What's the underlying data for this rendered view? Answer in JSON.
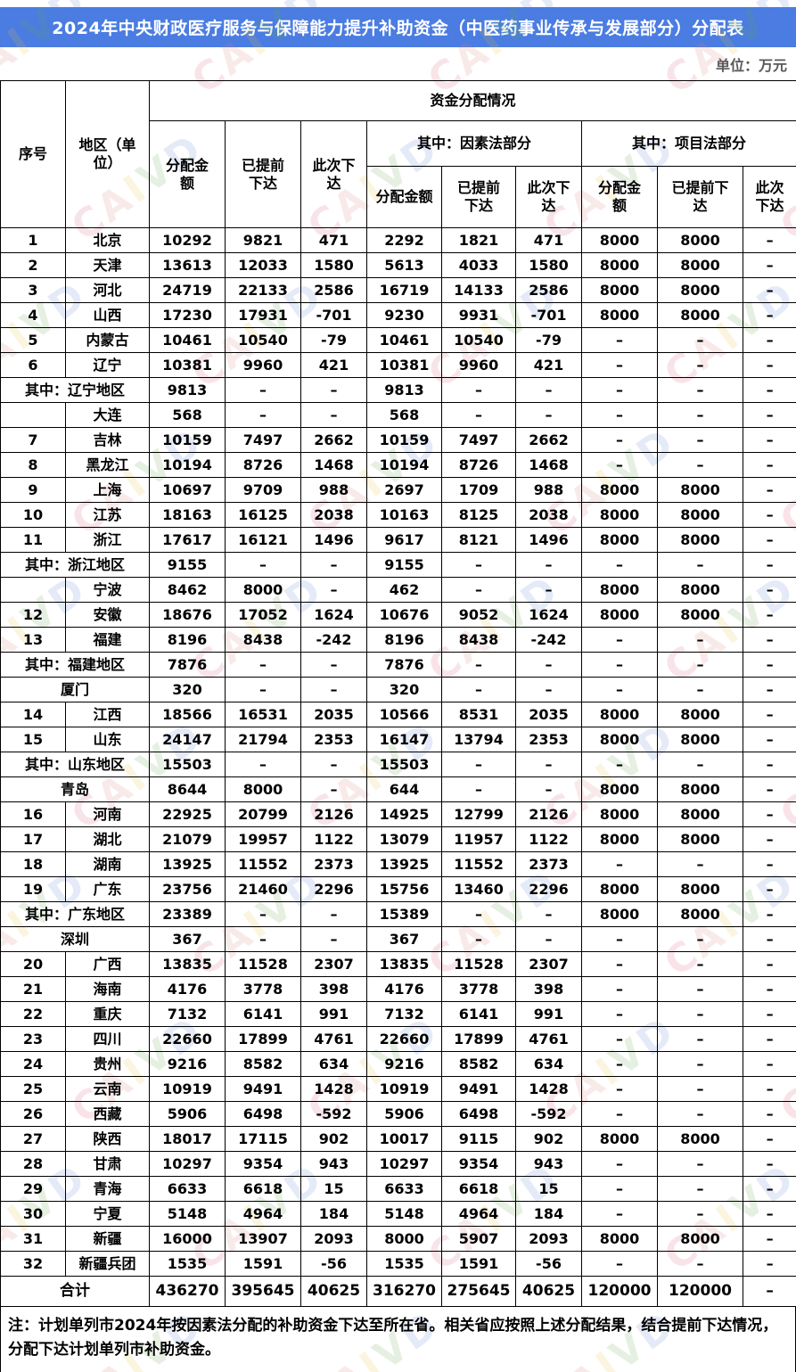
{
  "title": "2024年中央财政医疗服务与保障能力提升补助资金（中医药事业传承与发展部分）分配表",
  "unit_label": "单位：万元",
  "watermark_text": "CAIVD",
  "colors": {
    "title_bg": "#4a7ce2",
    "title_text": "#ffffff",
    "unit_text": "#595959",
    "grid_line": "#000000"
  },
  "header": {
    "col_seq": "序号",
    "col_region": "地区（单位）",
    "group_main": "资金分配情况",
    "col_alloc": "分配金额",
    "col_pre": "已提前下达",
    "col_now": "此次下达",
    "group_factor": "其中：因素法部分",
    "group_project": "其中：项目法部分",
    "sub": [
      "分配金额",
      "已提前下达",
      "此次下达",
      "分配金额",
      "已提前下达",
      "此次下达"
    ]
  },
  "table": {
    "rows": [
      {
        "type": "normal",
        "seq": "1",
        "region": "北京",
        "values": [
          "10292",
          "9821",
          "471",
          "2292",
          "1821",
          "471",
          "8000",
          "8000",
          "–"
        ]
      },
      {
        "type": "normal",
        "seq": "2",
        "region": "天津",
        "values": [
          "13613",
          "12033",
          "1580",
          "5613",
          "4033",
          "1580",
          "8000",
          "8000",
          "–"
        ]
      },
      {
        "type": "normal",
        "seq": "3",
        "region": "河北",
        "values": [
          "24719",
          "22133",
          "2586",
          "16719",
          "14133",
          "2586",
          "8000",
          "8000",
          "–"
        ]
      },
      {
        "type": "normal",
        "seq": "4",
        "region": "山西",
        "values": [
          "17230",
          "17931",
          "-701",
          "9230",
          "9931",
          "-701",
          "8000",
          "8000",
          "–"
        ]
      },
      {
        "type": "normal",
        "seq": "5",
        "region": "内蒙古",
        "values": [
          "10461",
          "10540",
          "-79",
          "10461",
          "10540",
          "-79",
          "–",
          "–",
          "–"
        ]
      },
      {
        "type": "normal",
        "seq": "6",
        "region": "辽宁",
        "values": [
          "10381",
          "9960",
          "421",
          "10381",
          "9960",
          "421",
          "–",
          "–",
          "–"
        ]
      },
      {
        "type": "subtotal",
        "seq": "",
        "region": "其中：辽宁地区",
        "values": [
          "9813",
          "–",
          "–",
          "9813",
          "–",
          "–",
          "–",
          "–",
          "–"
        ]
      },
      {
        "type": "city-split",
        "seq": "",
        "region": "大连",
        "values": [
          "568",
          "–",
          "–",
          "568",
          "–",
          "–",
          "–",
          "–",
          "–"
        ]
      },
      {
        "type": "normal",
        "seq": "7",
        "region": "吉林",
        "values": [
          "10159",
          "7497",
          "2662",
          "10159",
          "7497",
          "2662",
          "–",
          "–",
          "–"
        ]
      },
      {
        "type": "normal",
        "seq": "8",
        "region": "黑龙江",
        "values": [
          "10194",
          "8726",
          "1468",
          "10194",
          "8726",
          "1468",
          "–",
          "–",
          "–"
        ]
      },
      {
        "type": "normal",
        "seq": "9",
        "region": "上海",
        "values": [
          "10697",
          "9709",
          "988",
          "2697",
          "1709",
          "988",
          "8000",
          "8000",
          "–"
        ]
      },
      {
        "type": "normal",
        "seq": "10",
        "region": "江苏",
        "values": [
          "18163",
          "16125",
          "2038",
          "10163",
          "8125",
          "2038",
          "8000",
          "8000",
          "–"
        ]
      },
      {
        "type": "normal",
        "seq": "11",
        "region": "浙江",
        "values": [
          "17617",
          "16121",
          "1496",
          "9617",
          "8121",
          "1496",
          "8000",
          "8000",
          "–"
        ]
      },
      {
        "type": "subtotal",
        "seq": "",
        "region": "其中：浙江地区",
        "values": [
          "9155",
          "–",
          "–",
          "9155",
          "–",
          "–",
          "–",
          "–",
          "–"
        ]
      },
      {
        "type": "city-split",
        "seq": "",
        "region": "宁波",
        "values": [
          "8462",
          "8000",
          "–",
          "462",
          "–",
          "–",
          "8000",
          "8000",
          "–"
        ]
      },
      {
        "type": "normal",
        "seq": "12",
        "region": "安徽",
        "values": [
          "18676",
          "17052",
          "1624",
          "10676",
          "9052",
          "1624",
          "8000",
          "8000",
          "–"
        ]
      },
      {
        "type": "normal",
        "seq": "13",
        "region": "福建",
        "values": [
          "8196",
          "8438",
          "-242",
          "8196",
          "8438",
          "-242",
          "–",
          "–",
          "–"
        ]
      },
      {
        "type": "subtotal",
        "seq": "",
        "region": "其中：福建地区",
        "values": [
          "7876",
          "–",
          "–",
          "7876",
          "–",
          "–",
          "–",
          "–",
          "–"
        ]
      },
      {
        "type": "city-merged",
        "seq": "",
        "region": "厦门",
        "values": [
          "320",
          "–",
          "–",
          "320",
          "–",
          "–",
          "–",
          "–",
          "–"
        ]
      },
      {
        "type": "normal",
        "seq": "14",
        "region": "江西",
        "values": [
          "18566",
          "16531",
          "2035",
          "10566",
          "8531",
          "2035",
          "8000",
          "8000",
          "–"
        ]
      },
      {
        "type": "normal",
        "seq": "15",
        "region": "山东",
        "values": [
          "24147",
          "21794",
          "2353",
          "16147",
          "13794",
          "2353",
          "8000",
          "8000",
          "–"
        ]
      },
      {
        "type": "subtotal",
        "seq": "",
        "region": "其中：山东地区",
        "values": [
          "15503",
          "–",
          "–",
          "15503",
          "–",
          "–",
          "–",
          "–",
          "–"
        ]
      },
      {
        "type": "city-merged",
        "seq": "",
        "region": "青岛",
        "values": [
          "8644",
          "8000",
          "–",
          "644",
          "–",
          "–",
          "8000",
          "8000",
          "–"
        ]
      },
      {
        "type": "normal",
        "seq": "16",
        "region": "河南",
        "values": [
          "22925",
          "20799",
          "2126",
          "14925",
          "12799",
          "2126",
          "8000",
          "8000",
          "–"
        ]
      },
      {
        "type": "normal",
        "seq": "17",
        "region": "湖北",
        "values": [
          "21079",
          "19957",
          "1122",
          "13079",
          "11957",
          "1122",
          "8000",
          "8000",
          "–"
        ]
      },
      {
        "type": "normal",
        "seq": "18",
        "region": "湖南",
        "values": [
          "13925",
          "11552",
          "2373",
          "13925",
          "11552",
          "2373",
          "–",
          "–",
          "–"
        ]
      },
      {
        "type": "normal",
        "seq": "19",
        "region": "广东",
        "values": [
          "23756",
          "21460",
          "2296",
          "15756",
          "13460",
          "2296",
          "8000",
          "8000",
          "–"
        ]
      },
      {
        "type": "subtotal",
        "seq": "",
        "region": "其中：广东地区",
        "values": [
          "23389",
          "–",
          "–",
          "15389",
          "–",
          "–",
          "8000",
          "8000",
          "–"
        ]
      },
      {
        "type": "city-merged",
        "seq": "",
        "region": "深圳",
        "values": [
          "367",
          "–",
          "–",
          "367",
          "–",
          "–",
          "–",
          "–",
          "–"
        ]
      },
      {
        "type": "normal",
        "seq": "20",
        "region": "广西",
        "values": [
          "13835",
          "11528",
          "2307",
          "13835",
          "11528",
          "2307",
          "–",
          "–",
          "–"
        ]
      },
      {
        "type": "normal",
        "seq": "21",
        "region": "海南",
        "values": [
          "4176",
          "3778",
          "398",
          "4176",
          "3778",
          "398",
          "–",
          "–",
          "–"
        ]
      },
      {
        "type": "normal",
        "seq": "22",
        "region": "重庆",
        "values": [
          "7132",
          "6141",
          "991",
          "7132",
          "6141",
          "991",
          "–",
          "–",
          "–"
        ]
      },
      {
        "type": "normal",
        "seq": "23",
        "region": "四川",
        "values": [
          "22660",
          "17899",
          "4761",
          "22660",
          "17899",
          "4761",
          "–",
          "–",
          "–"
        ]
      },
      {
        "type": "normal",
        "seq": "24",
        "region": "贵州",
        "values": [
          "9216",
          "8582",
          "634",
          "9216",
          "8582",
          "634",
          "–",
          "–",
          "–"
        ]
      },
      {
        "type": "normal",
        "seq": "25",
        "region": "云南",
        "values": [
          "10919",
          "9491",
          "1428",
          "10919",
          "9491",
          "1428",
          "–",
          "–",
          "–"
        ]
      },
      {
        "type": "normal",
        "seq": "26",
        "region": "西藏",
        "values": [
          "5906",
          "6498",
          "-592",
          "5906",
          "6498",
          "-592",
          "–",
          "–",
          "–"
        ]
      },
      {
        "type": "normal",
        "seq": "27",
        "region": "陕西",
        "values": [
          "18017",
          "17115",
          "902",
          "10017",
          "9115",
          "902",
          "8000",
          "8000",
          "–"
        ]
      },
      {
        "type": "normal",
        "seq": "28",
        "region": "甘肃",
        "values": [
          "10297",
          "9354",
          "943",
          "10297",
          "9354",
          "943",
          "–",
          "–",
          "–"
        ]
      },
      {
        "type": "normal",
        "seq": "29",
        "region": "青海",
        "values": [
          "6633",
          "6618",
          "15",
          "6633",
          "6618",
          "15",
          "–",
          "–",
          "–"
        ]
      },
      {
        "type": "normal",
        "seq": "30",
        "region": "宁夏",
        "values": [
          "5148",
          "4964",
          "184",
          "5148",
          "4964",
          "184",
          "–",
          "–",
          "–"
        ]
      },
      {
        "type": "normal",
        "seq": "31",
        "region": "新疆",
        "values": [
          "16000",
          "13907",
          "2093",
          "8000",
          "5907",
          "2093",
          "8000",
          "8000",
          "–"
        ]
      },
      {
        "type": "normal",
        "seq": "32",
        "region": "新疆兵团",
        "values": [
          "1535",
          "1591",
          "-56",
          "1535",
          "1591",
          "-56",
          "–",
          "–",
          "–"
        ]
      }
    ],
    "total": {
      "label": "合计",
      "values": [
        "436270",
        "395645",
        "40625",
        "316270",
        "275645",
        "40625",
        "120000",
        "120000",
        "–"
      ]
    }
  },
  "note": "注：计划单列市2024年按因素法分配的补助资金下达至所在省。相关省应按照上述分配结果，结合提前下达情况，分配下达计划单列市补助资金。"
}
